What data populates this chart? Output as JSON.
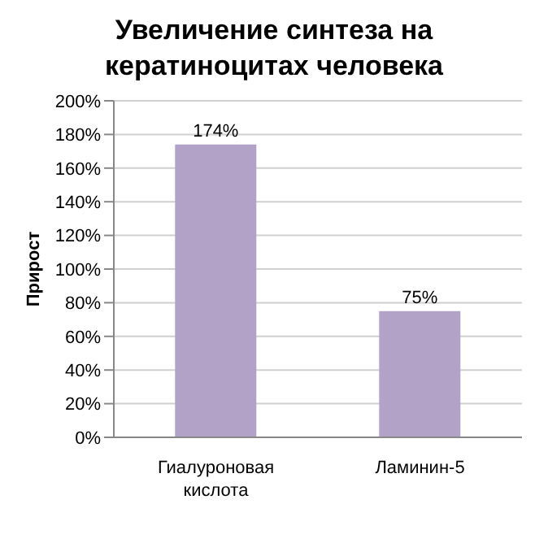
{
  "chart_data": {
    "type": "bar",
    "title": "Увеличение синтеза на кератиноцитах человека",
    "ylabel": "Прирост",
    "categories": [
      "Гиалуроновая кислота",
      "Ламинин-5"
    ],
    "values": [
      174,
      75
    ],
    "color": "#b3a2c7",
    "value_labels": [
      "174%",
      "75%"
    ],
    "ylim": [
      0,
      200
    ],
    "yticks": [
      {
        "value": 0,
        "label": "0%"
      },
      {
        "value": 20,
        "label": "20%"
      },
      {
        "value": 40,
        "label": "40%"
      },
      {
        "value": 60,
        "label": "60%"
      },
      {
        "value": 80,
        "label": "80%"
      },
      {
        "value": 100,
        "label": "100%"
      },
      {
        "value": 120,
        "label": "120%"
      },
      {
        "value": 140,
        "label": "140%"
      },
      {
        "value": 160,
        "label": "160%"
      },
      {
        "value": 180,
        "label": "180%"
      },
      {
        "value": 200,
        "label": "200%"
      }
    ],
    "grid": "y",
    "legend": false
  }
}
